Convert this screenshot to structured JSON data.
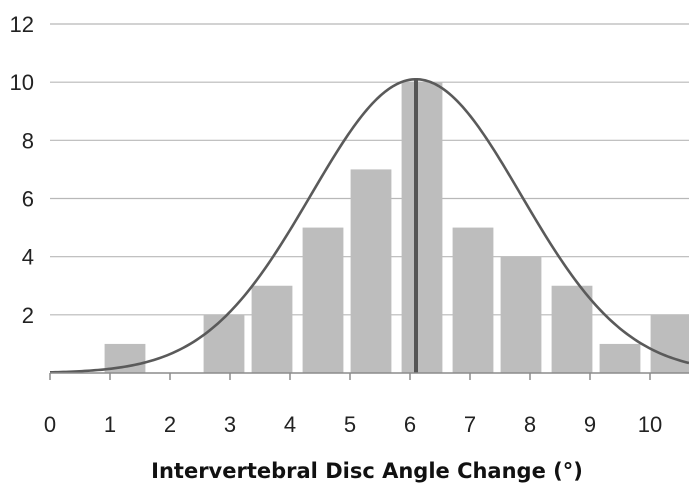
{
  "chart_data": {
    "type": "bar",
    "title": "",
    "xlabel": "Intervertebral Disc Angle Change (°)",
    "ylabel": "",
    "x_ticks": [
      "0",
      "1",
      "2",
      "3",
      "4",
      "5",
      "6",
      "7",
      "8",
      "9",
      "10"
    ],
    "y_ticks": [
      "2",
      "4",
      "6",
      "8",
      "10",
      "12"
    ],
    "xlim": [
      0,
      10.65
    ],
    "ylim": [
      0,
      12
    ],
    "grid": true,
    "bars": [
      {
        "x": 1.25,
        "value": 1
      },
      {
        "x": 2.9,
        "value": 2
      },
      {
        "x": 3.7,
        "value": 3
      },
      {
        "x": 4.55,
        "value": 5
      },
      {
        "x": 5.35,
        "value": 7
      },
      {
        "x": 6.2,
        "value": 10
      },
      {
        "x": 7.05,
        "value": 5
      },
      {
        "x": 7.85,
        "value": 4
      },
      {
        "x": 8.7,
        "value": 3
      },
      {
        "x": 9.5,
        "value": 1
      },
      {
        "x": 10.35,
        "value": 2
      }
    ],
    "bar_width": 0.68,
    "normal_curve": {
      "mean": 6.1,
      "sd": 1.75,
      "peak": 10.1
    },
    "mean_line": {
      "x": 6.1,
      "value": 10.1
    },
    "colors": {
      "bar": "#bdbdbd",
      "curve": "#5a5a5a",
      "mean_line": "#555555",
      "grid": "#b8b8b8",
      "axis": "#8c8c8c"
    }
  }
}
